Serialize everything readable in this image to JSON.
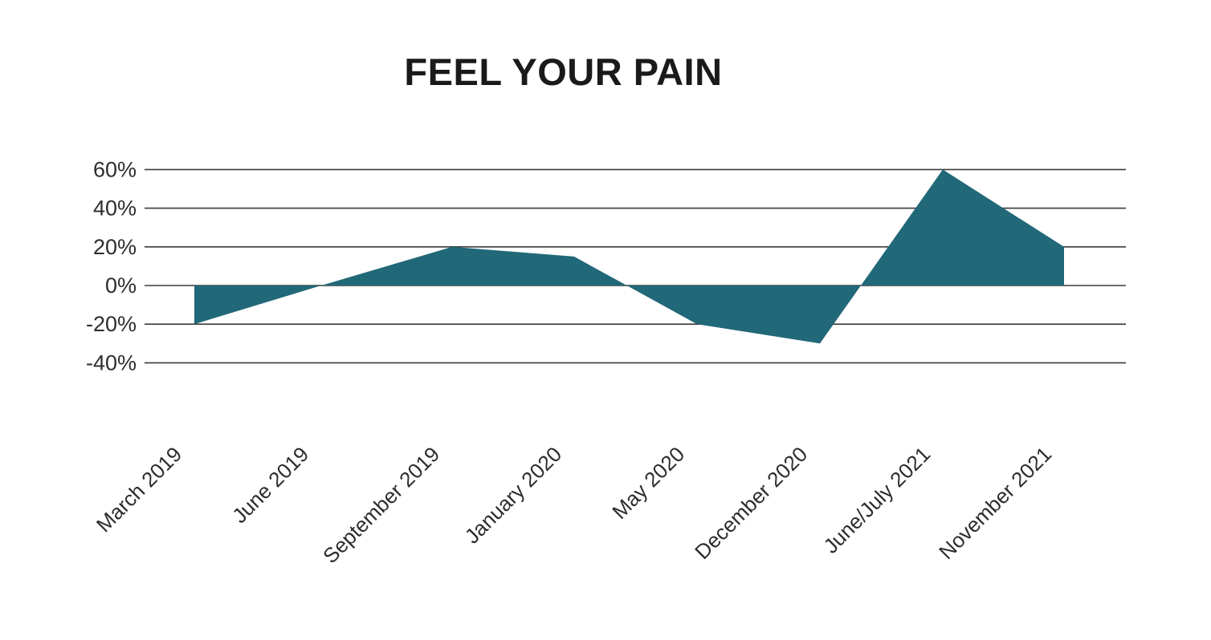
{
  "chart_data": {
    "type": "area",
    "title": "FEEL YOUR PAIN",
    "categories": [
      "March 2019",
      "June 2019",
      "September 2019",
      "January 2020",
      "May 2020",
      "December 2020",
      "June/July 2021",
      "November 2021"
    ],
    "values": [
      -20,
      0,
      20,
      15,
      -20,
      -30,
      60,
      20
    ],
    "unit": "%",
    "y_ticks": [
      60,
      40,
      20,
      0,
      -20,
      -40
    ],
    "y_tick_labels": [
      "60%",
      "40%",
      "20%",
      "0%",
      "-20%",
      "-40%"
    ],
    "ylim": [
      -50,
      70
    ],
    "xlabel": "",
    "ylabel": "",
    "grid": "horizontal",
    "legend": "none",
    "x_label_rotation_deg": 45,
    "baseline_value": 0,
    "area_color": "#216878",
    "gridline_color": "#3a3a3a",
    "axis_text_color": "#2d2d2d",
    "title_color": "#1a1a1a"
  }
}
